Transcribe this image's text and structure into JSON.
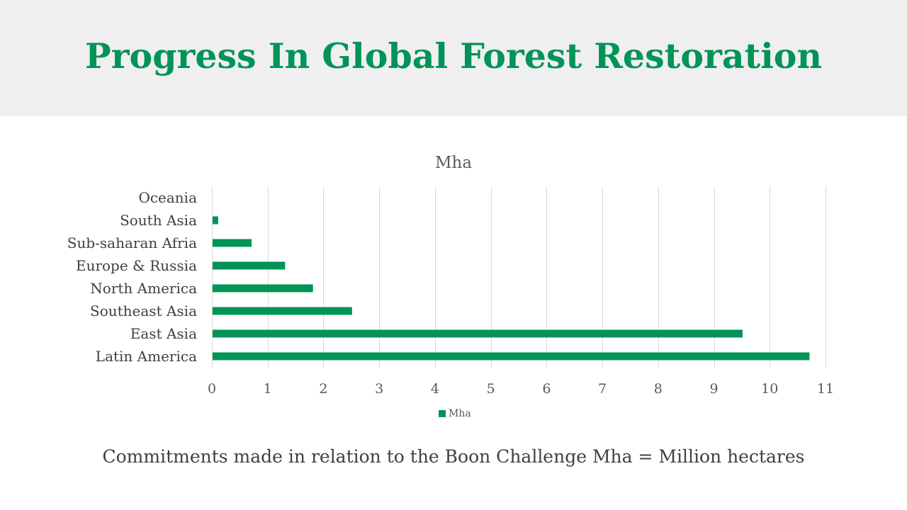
{
  "page": {
    "title": "Progress In Global Forest Restoration",
    "footnote": "Commitments made in relation to the Boon Challenge Mha = Million hectares"
  },
  "colors": {
    "accent": "#009456",
    "text": "#404040",
    "grid": "#d9d9d9",
    "header_bg": "#f2f2f2"
  },
  "chart_data": {
    "type": "bar",
    "orientation": "horizontal",
    "title": "Mha",
    "categories": [
      "Oceania",
      "South Asia",
      "Sub-saharan Afria",
      "Europe & Russia",
      "North America",
      "Southeast Asia",
      "East Asia",
      "Latin America"
    ],
    "series": [
      {
        "name": "Mha",
        "values": [
          0,
          0.1,
          0.7,
          1.3,
          1.8,
          2.5,
          9.5,
          10.7
        ]
      }
    ],
    "xlim": [
      0,
      11
    ],
    "xticks": [
      "0",
      "1",
      "2",
      "3",
      "4",
      "5",
      "6",
      "7",
      "8",
      "9",
      "10",
      "11"
    ],
    "grid": true,
    "legend": "bottom"
  }
}
